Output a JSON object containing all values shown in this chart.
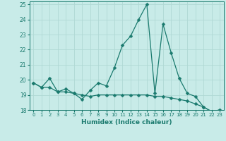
{
  "xlabel": "Humidex (Indice chaleur)",
  "background_color": "#c8ebe8",
  "grid_color": "#b0d8d4",
  "line_color": "#1a7a6e",
  "x_values": [
    0,
    1,
    2,
    3,
    4,
    5,
    6,
    7,
    8,
    9,
    10,
    11,
    12,
    13,
    14,
    15,
    16,
    17,
    18,
    19,
    20,
    21,
    22,
    23
  ],
  "line1": [
    19.8,
    19.5,
    19.5,
    19.2,
    19.2,
    19.1,
    19.0,
    18.9,
    19.0,
    19.0,
    19.0,
    19.0,
    19.0,
    19.0,
    19.0,
    18.9,
    18.9,
    18.8,
    18.7,
    18.6,
    18.4,
    18.2,
    17.9,
    18.0
  ],
  "line2": [
    19.8,
    19.5,
    20.1,
    19.2,
    19.4,
    19.1,
    18.7,
    19.3,
    19.8,
    19.6,
    20.8,
    22.3,
    22.9,
    24.0,
    25.0,
    19.1,
    23.7,
    21.8,
    20.1,
    19.1,
    18.9,
    18.2,
    17.9,
    18.0
  ],
  "ylim": [
    18,
    25.2
  ],
  "xlim": [
    -0.5,
    23.5
  ],
  "yticks": [
    18,
    19,
    20,
    21,
    22,
    23,
    24,
    25
  ],
  "xticks": [
    0,
    1,
    2,
    3,
    4,
    5,
    6,
    7,
    8,
    9,
    10,
    11,
    12,
    13,
    14,
    15,
    16,
    17,
    18,
    19,
    20,
    21,
    22,
    23
  ],
  "markersize": 2.5,
  "linewidth": 0.9
}
